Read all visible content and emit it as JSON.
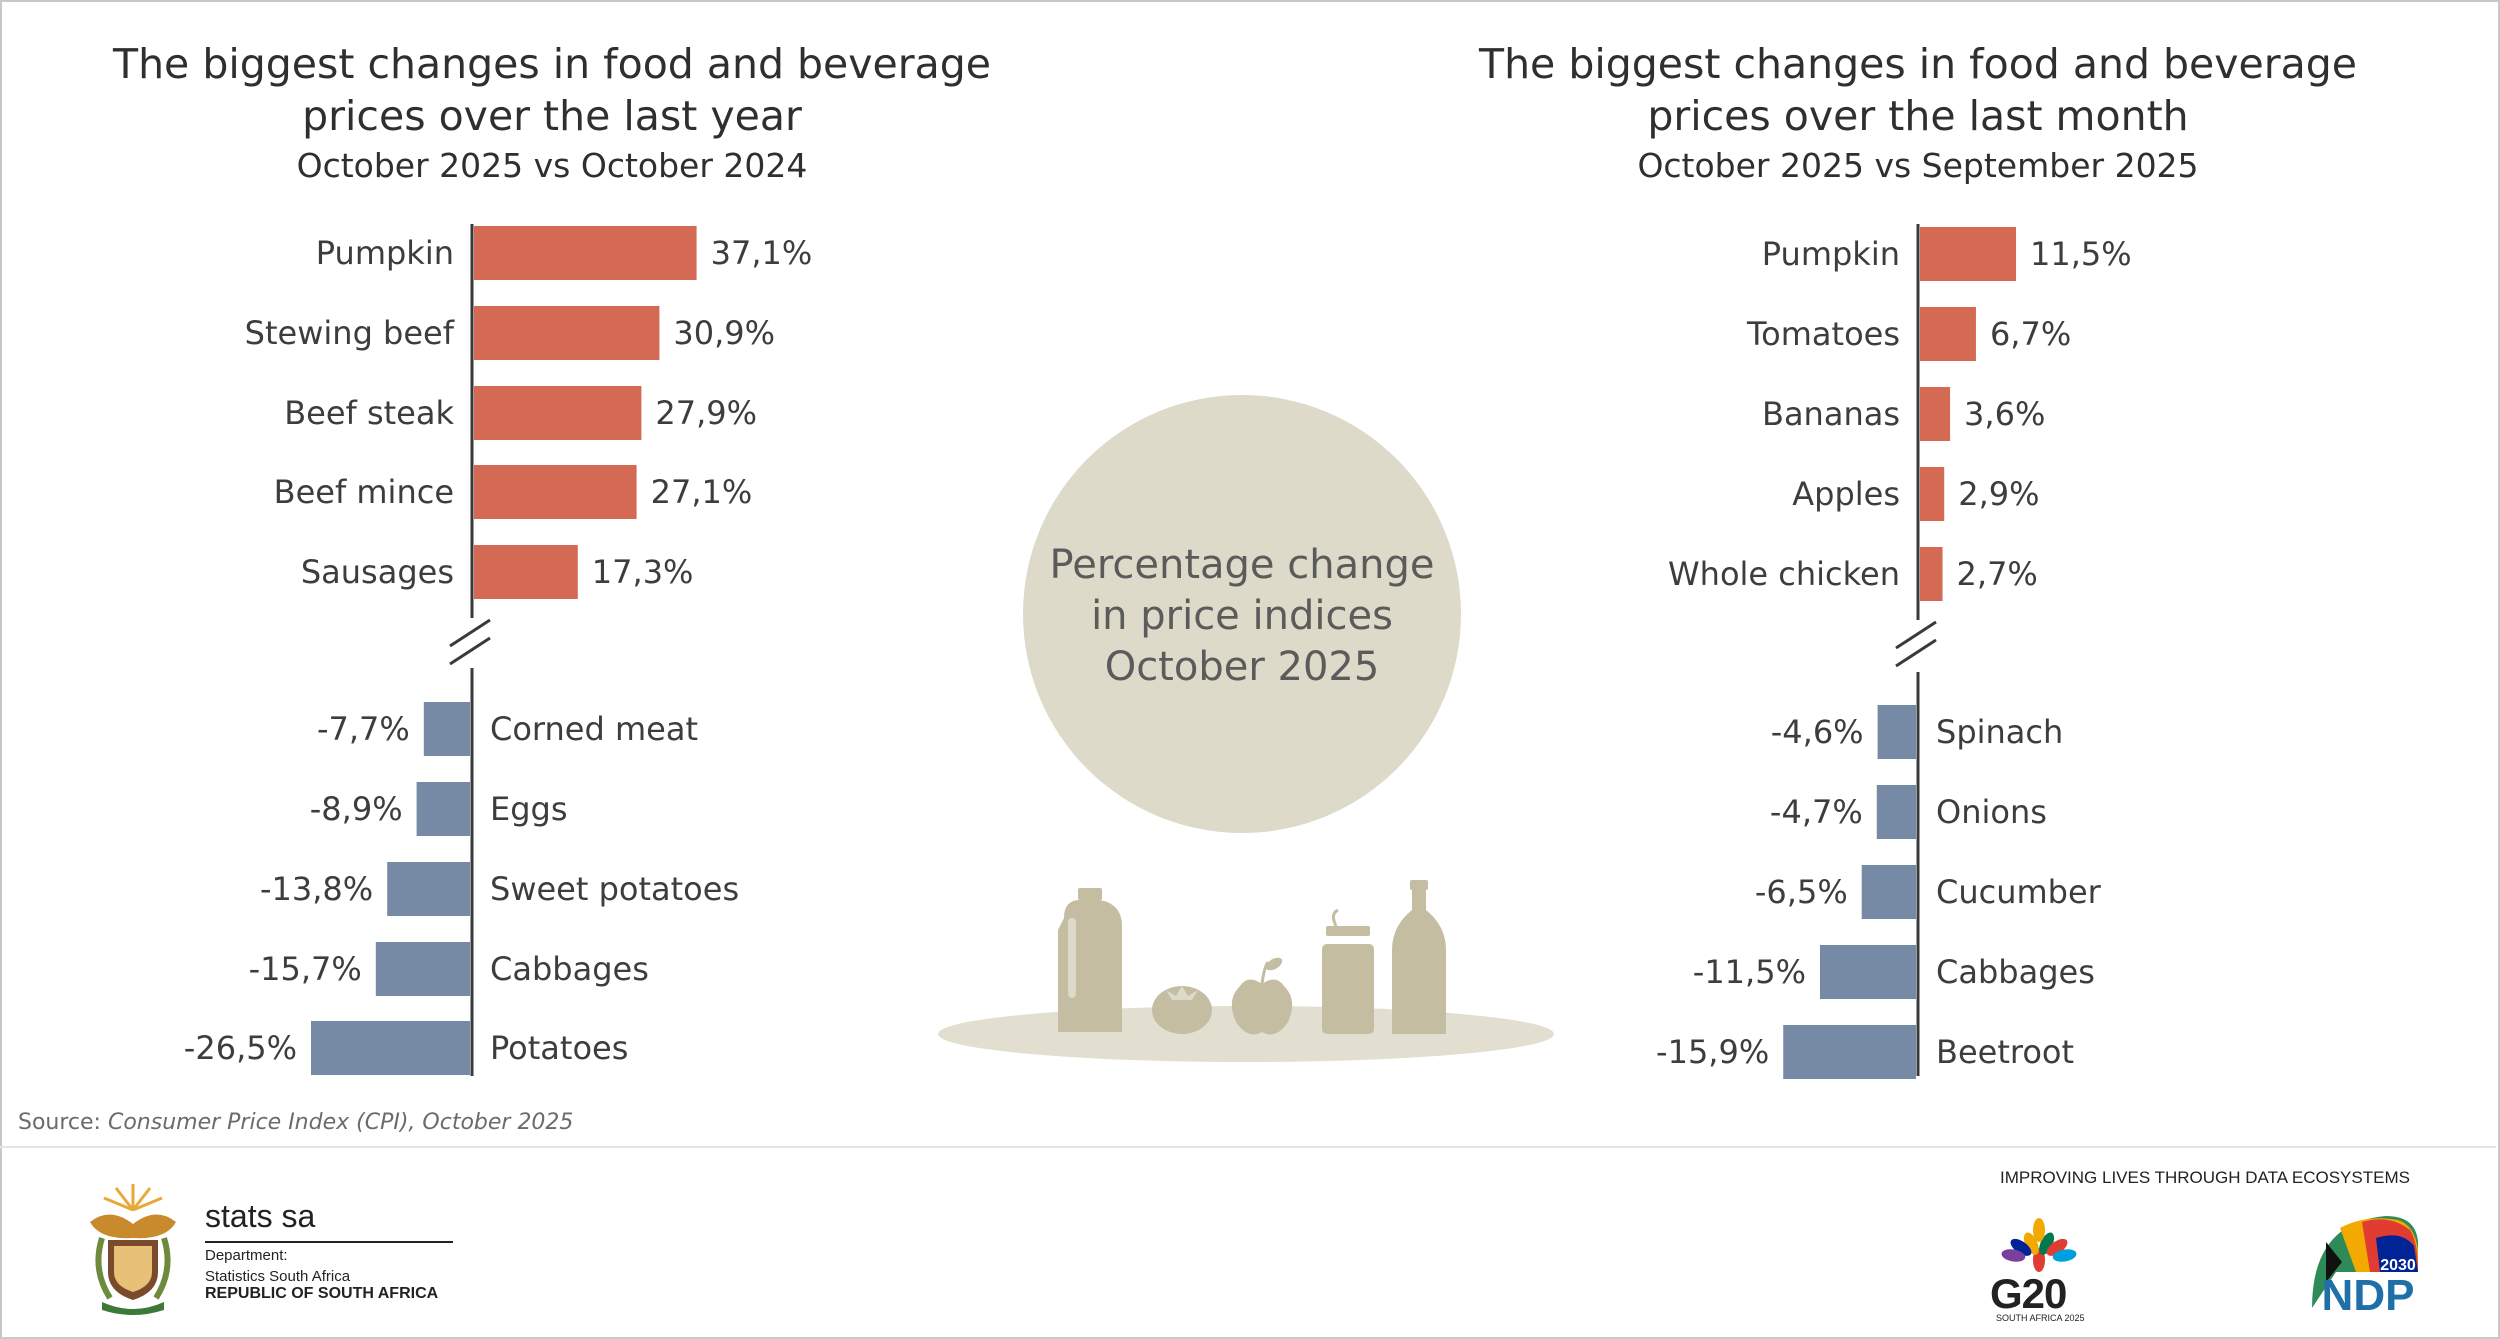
{
  "left_chart": {
    "title_line1": "The biggest changes in food and beverage",
    "title_line2": "prices over the last year",
    "subtitle": "October 2025 vs October 2024"
  },
  "right_chart": {
    "title_line1": "The biggest changes in food and beverage",
    "title_line2": "prices over the last month",
    "subtitle": "October 2025 vs September 2025"
  },
  "center": {
    "line1": "Percentage change",
    "line2": "in price indices",
    "line3": "October 2025"
  },
  "source": {
    "label": "Source: ",
    "text": "Consumer Price Index (CPI), October 2025"
  },
  "footer": {
    "org_name": "stats sa",
    "org_dept": "Department:",
    "org_sub": "Statistics South Africa",
    "org_country": "REPUBLIC OF SOUTH AFRICA",
    "tagline": "IMPROVING LIVES THROUGH DATA ECOSYSTEMS",
    "g20": "G20",
    "g20_sub": "SOUTH AFRICA 2025",
    "ndp": "NDP",
    "ndp_year": "2030"
  },
  "colors": {
    "increase": "#D46A53",
    "decrease": "#7689A5",
    "circle": "#DDDACA",
    "food_icons": "#C4BDA2",
    "axis": "#3a3a3a"
  },
  "chart_data": [
    {
      "type": "bar",
      "orientation": "horizontal",
      "axis_break": true,
      "increases": {
        "categories": [
          "Pumpkin",
          "Stewing beef",
          "Beef steak",
          "Beef mince",
          "Sausages"
        ],
        "values": [
          37.1,
          30.9,
          27.9,
          27.1,
          17.3
        ],
        "labels": [
          "37,1%",
          "30,9%",
          "27,9%",
          "27,1%",
          "17,3%"
        ]
      },
      "decreases": {
        "categories": [
          "Corned meat",
          "Eggs",
          "Sweet potatoes",
          "Cabbages",
          "Potatoes"
        ],
        "values": [
          -7.7,
          -8.9,
          -13.8,
          -15.7,
          -26.5
        ],
        "labels": [
          "-7,7%",
          "-8,9%",
          "-13,8%",
          "-15,7%",
          "-26,5%"
        ]
      }
    },
    {
      "type": "bar",
      "orientation": "horizontal",
      "axis_break": true,
      "increases": {
        "categories": [
          "Pumpkin",
          "Tomatoes",
          "Bananas",
          "Apples",
          "Whole chicken"
        ],
        "values": [
          11.5,
          6.7,
          3.6,
          2.9,
          2.7
        ],
        "labels": [
          "11,5%",
          "6,7%",
          "3,6%",
          "2,9%",
          "2,7%"
        ]
      },
      "decreases": {
        "categories": [
          "Spinach",
          "Onions",
          "Cucumber",
          "Cabbages",
          "Beetroot"
        ],
        "values": [
          -4.6,
          -4.7,
          -6.5,
          -11.5,
          -15.9
        ],
        "labels": [
          "-4,6%",
          "-4,7%",
          "-6,5%",
          "-11,5%",
          "-15,9%"
        ]
      }
    }
  ]
}
